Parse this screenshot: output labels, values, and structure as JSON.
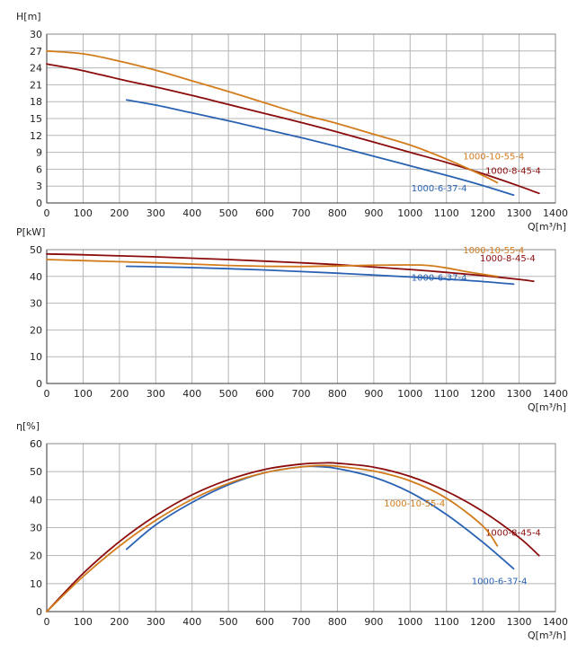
{
  "colors": {
    "1000-6-37-4": "#2a62b3",
    "1000-8-45-4": "#8b0c0c",
    "1000-10-55-4": "#d27c1c"
  },
  "chart_data": [
    {
      "type": "line",
      "id": "head",
      "ylabel": "H[m]",
      "xlabel": "Q[m³/h]",
      "xlim": [
        0,
        1400
      ],
      "ylim": [
        0,
        30
      ],
      "xticks": [
        0,
        100,
        200,
        300,
        400,
        500,
        600,
        700,
        800,
        900,
        1000,
        1100,
        1200,
        1300,
        1400
      ],
      "yticks": [
        0,
        3,
        6,
        9,
        12,
        15,
        18,
        21,
        24,
        27,
        30
      ],
      "grid": true,
      "series": [
        {
          "name": "1000-6-37-4",
          "label_pos": "below-right",
          "points": [
            [
              220,
              18.3
            ],
            [
              300,
              17.4
            ],
            [
              400,
              16.0
            ],
            [
              500,
              14.6
            ],
            [
              600,
              13.1
            ],
            [
              700,
              11.6
            ],
            [
              800,
              10.0
            ],
            [
              900,
              8.3
            ],
            [
              1000,
              6.6
            ],
            [
              1100,
              4.9
            ],
            [
              1200,
              3.1
            ],
            [
              1285,
              1.4
            ]
          ]
        },
        {
          "name": "1000-8-45-4",
          "label_pos": "right",
          "points": [
            [
              0,
              24.7
            ],
            [
              100,
              23.5
            ],
            [
              200,
              22.0
            ],
            [
              300,
              20.6
            ],
            [
              400,
              19.1
            ],
            [
              500,
              17.5
            ],
            [
              600,
              15.9
            ],
            [
              700,
              14.3
            ],
            [
              800,
              12.6
            ],
            [
              900,
              10.8
            ],
            [
              1000,
              9.0
            ],
            [
              1100,
              7.2
            ],
            [
              1200,
              5.2
            ],
            [
              1300,
              3.0
            ],
            [
              1355,
              1.7
            ]
          ]
        },
        {
          "name": "1000-10-55-4",
          "label_pos": "above-right",
          "points": [
            [
              0,
              27.0
            ],
            [
              100,
              26.5
            ],
            [
              200,
              25.2
            ],
            [
              300,
              23.6
            ],
            [
              400,
              21.7
            ],
            [
              500,
              19.8
            ],
            [
              600,
              17.8
            ],
            [
              700,
              15.8
            ],
            [
              800,
              14.1
            ],
            [
              900,
              12.2
            ],
            [
              1000,
              10.3
            ],
            [
              1100,
              7.8
            ],
            [
              1200,
              4.9
            ],
            [
              1240,
              3.6
            ]
          ]
        }
      ]
    },
    {
      "type": "line",
      "id": "power",
      "ylabel": "P[kW]",
      "xlabel": "Q[m³/h]",
      "xlim": [
        0,
        1400
      ],
      "ylim": [
        0,
        50
      ],
      "xticks": [
        0,
        100,
        200,
        300,
        400,
        500,
        600,
        700,
        800,
        900,
        1000,
        1100,
        1200,
        1300,
        1400
      ],
      "yticks": [
        0,
        10,
        20,
        30,
        40,
        50
      ],
      "grid": true,
      "series": [
        {
          "name": "1000-6-37-4",
          "label_pos": "below-right",
          "points": [
            [
              220,
              43.8
            ],
            [
              300,
              43.6
            ],
            [
              400,
              43.3
            ],
            [
              500,
              42.9
            ],
            [
              600,
              42.4
            ],
            [
              700,
              41.8
            ],
            [
              800,
              41.2
            ],
            [
              900,
              40.5
            ],
            [
              1000,
              39.8
            ],
            [
              1100,
              39.0
            ],
            [
              1200,
              38.1
            ],
            [
              1285,
              37.1
            ]
          ]
        },
        {
          "name": "1000-8-45-4",
          "label_pos": "right",
          "points": [
            [
              0,
              48.4
            ],
            [
              100,
              48.1
            ],
            [
              200,
              47.7
            ],
            [
              300,
              47.3
            ],
            [
              400,
              46.8
            ],
            [
              500,
              46.3
            ],
            [
              600,
              45.7
            ],
            [
              700,
              45.1
            ],
            [
              800,
              44.4
            ],
            [
              900,
              43.5
            ],
            [
              1000,
              42.6
            ],
            [
              1100,
              41.5
            ],
            [
              1200,
              40.3
            ],
            [
              1300,
              38.9
            ],
            [
              1340,
              38.2
            ]
          ]
        },
        {
          "name": "1000-10-55-4",
          "label_pos": "above-right",
          "points": [
            [
              0,
              46.3
            ],
            [
              100,
              45.9
            ],
            [
              200,
              45.5
            ],
            [
              300,
              45.1
            ],
            [
              400,
              44.6
            ],
            [
              500,
              44.1
            ],
            [
              600,
              43.8
            ],
            [
              700,
              43.7
            ],
            [
              800,
              43.9
            ],
            [
              900,
              44.2
            ],
            [
              1000,
              44.3
            ],
            [
              1050,
              44.1
            ],
            [
              1100,
              43.2
            ],
            [
              1150,
              41.9
            ],
            [
              1200,
              40.8
            ],
            [
              1240,
              40.0
            ]
          ]
        }
      ]
    },
    {
      "type": "line",
      "id": "efficiency",
      "ylabel": "η[%]",
      "xlabel": "Q[m³/h]",
      "xlim": [
        0,
        1400
      ],
      "ylim": [
        0,
        60
      ],
      "xticks": [
        0,
        100,
        200,
        300,
        400,
        500,
        600,
        700,
        800,
        900,
        1000,
        1100,
        1200,
        1300,
        1400
      ],
      "yticks": [
        0,
        10,
        20,
        30,
        40,
        50,
        60
      ],
      "grid": true,
      "series": [
        {
          "name": "1000-6-37-4",
          "label_pos": "below",
          "points": [
            [
              220,
              22.3
            ],
            [
              300,
              31.0
            ],
            [
              400,
              39.0
            ],
            [
              500,
              45.3
            ],
            [
              600,
              49.6
            ],
            [
              700,
              51.7
            ],
            [
              750,
              51.8
            ],
            [
              800,
              51.1
            ],
            [
              900,
              48.0
            ],
            [
              1000,
              42.6
            ],
            [
              1100,
              34.7
            ],
            [
              1200,
              24.8
            ],
            [
              1285,
              15.3
            ]
          ]
        },
        {
          "name": "1000-8-45-4",
          "label_pos": "right",
          "points": [
            [
              0,
              0
            ],
            [
              100,
              13.6
            ],
            [
              200,
              25.0
            ],
            [
              300,
              34.3
            ],
            [
              400,
              41.7
            ],
            [
              500,
              47.1
            ],
            [
              600,
              50.8
            ],
            [
              700,
              52.7
            ],
            [
              760,
              53.1
            ],
            [
              800,
              53.0
            ],
            [
              900,
              51.6
            ],
            [
              1000,
              48.3
            ],
            [
              1100,
              43.0
            ],
            [
              1200,
              35.8
            ],
            [
              1300,
              26.5
            ],
            [
              1355,
              20.0
            ]
          ]
        },
        {
          "name": "1000-10-55-4",
          "label_pos": "left",
          "points": [
            [
              0,
              0
            ],
            [
              100,
              12.5
            ],
            [
              200,
              23.4
            ],
            [
              300,
              32.6
            ],
            [
              400,
              40.1
            ],
            [
              500,
              45.8
            ],
            [
              600,
              49.6
            ],
            [
              700,
              51.7
            ],
            [
              760,
              52.2
            ],
            [
              800,
              51.9
            ],
            [
              900,
              50.2
            ],
            [
              1000,
              46.7
            ],
            [
              1100,
              40.5
            ],
            [
              1200,
              30.6
            ],
            [
              1240,
              23.5
            ]
          ]
        }
      ]
    }
  ]
}
